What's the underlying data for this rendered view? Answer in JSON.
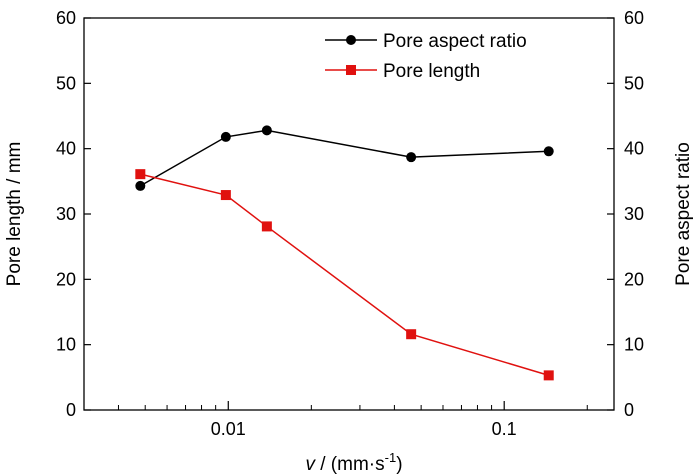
{
  "chart_data": {
    "type": "line",
    "x_scale": "log",
    "xlabel": {
      "symbol": "v",
      "text": " / (mm·s",
      "sup": "-1",
      "close": ")"
    },
    "ylabel_left": "Pore length / mm",
    "ylabel_right": "Pore aspect ratio",
    "xlim": [
      0.003,
      0.25
    ],
    "ylim_left": [
      0,
      60
    ],
    "ylim_right": [
      0,
      60
    ],
    "x_ticks": [
      {
        "value": 0.01,
        "label": "0.01"
      },
      {
        "value": 0.1,
        "label": "0.1"
      }
    ],
    "y_ticks_left": [
      "0",
      "10",
      "20",
      "30",
      "40",
      "50",
      "60"
    ],
    "y_ticks_right": [
      "0",
      "10",
      "20",
      "30",
      "40",
      "50",
      "60"
    ],
    "legend_position": "top-right",
    "grid": false,
    "series": [
      {
        "name": "Pore aspect ratio",
        "axis": "right",
        "color": "#000000",
        "marker": "circle",
        "x": [
          0.0048,
          0.0098,
          0.0138,
          0.046,
          0.145
        ],
        "y": [
          34.3,
          41.8,
          42.8,
          38.7,
          39.6
        ]
      },
      {
        "name": "Pore length",
        "axis": "left",
        "color": "#e0110f",
        "marker": "square",
        "x": [
          0.0048,
          0.0098,
          0.0138,
          0.046,
          0.145
        ],
        "y": [
          36.1,
          32.9,
          28.1,
          11.6,
          5.3
        ]
      }
    ]
  }
}
